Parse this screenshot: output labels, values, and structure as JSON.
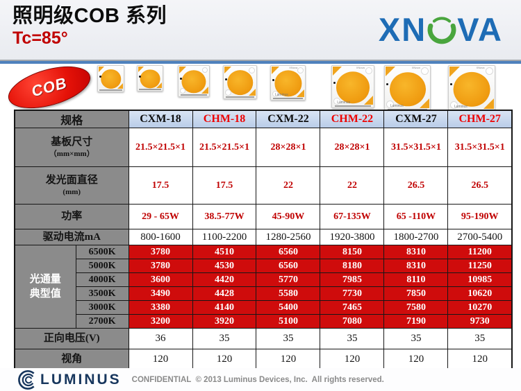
{
  "header": {
    "title": "照明级COB 系列",
    "subtitle": "Tc=85°",
    "logo": {
      "left": "XN",
      "right": "VA",
      "blue": "#1e6cb5",
      "green": "#49a53d"
    }
  },
  "cob_badge": "COB",
  "led_strip": {
    "count": 8,
    "module_top_label": "XNova",
    "module_bottom_label": "Luminus"
  },
  "table": {
    "columns": [
      "规格",
      "CXM-18",
      "CHM-18",
      "CXM-22",
      "CHM-22",
      "CXM-27",
      "CHM-27"
    ],
    "red_columns": [
      "CHM-18",
      "CHM-22",
      "CHM-27"
    ],
    "spec_rows": [
      {
        "label": "基板尺寸",
        "sublabel": "（mm×mm）",
        "values": [
          "21.5×21.5×1",
          "21.5×21.5×1",
          "28×28×1",
          "28×28×1",
          "31.5×31.5×1",
          "31.5×31.5×1"
        ],
        "style": "red-text"
      },
      {
        "label": "发光面直径",
        "sublabel": "(mm)",
        "values": [
          "17.5",
          "17.5",
          "22",
          "22",
          "26.5",
          "26.5"
        ],
        "style": "red-text"
      },
      {
        "label": "功率",
        "values": [
          "29 - 65W",
          "38.5-77W",
          "45-90W",
          "67-135W",
          "65 -110W",
          "95-190W"
        ],
        "style": "red-text"
      },
      {
        "label": "驱动电流mA",
        "values": [
          "800-1600",
          "1100-2200",
          "1280-2560",
          "1920-3800",
          "1800-2700",
          "2700-5400"
        ],
        "style": "black-text"
      }
    ],
    "flux_section": {
      "label_line1": "光通量",
      "label_line2": "典型值",
      "rows": [
        {
          "cct": "6500K",
          "values": [
            "3780",
            "4510",
            "6560",
            "8150",
            "8310",
            "11200"
          ]
        },
        {
          "cct": "5000K",
          "values": [
            "3780",
            "4530",
            "6560",
            "8180",
            "8310",
            "11250"
          ]
        },
        {
          "cct": "4000K",
          "values": [
            "3600",
            "4420",
            "5770",
            "7985",
            "8110",
            "10985"
          ]
        },
        {
          "cct": "3500K",
          "values": [
            "3490",
            "4428",
            "5580",
            "7730",
            "7850",
            "10620"
          ]
        },
        {
          "cct": "3000K",
          "values": [
            "3380",
            "4140",
            "5400",
            "7465",
            "7580",
            "10270"
          ]
        },
        {
          "cct": "2700K",
          "values": [
            "3200",
            "3920",
            "5100",
            "7080",
            "7190",
            "9730"
          ]
        }
      ]
    },
    "bottom_rows": [
      {
        "label": "正向电压(V)",
        "values": [
          "36",
          "35",
          "35",
          "35",
          "35",
          "35"
        ]
      },
      {
        "label": "视角",
        "values": [
          "120",
          "120",
          "120",
          "120",
          "120",
          "120"
        ]
      }
    ]
  },
  "footer": {
    "brand": "LUMINUS",
    "confidential": "CONFIDENTIAL  © 2013 Luminus Devices, Inc.  All rights reserved."
  }
}
